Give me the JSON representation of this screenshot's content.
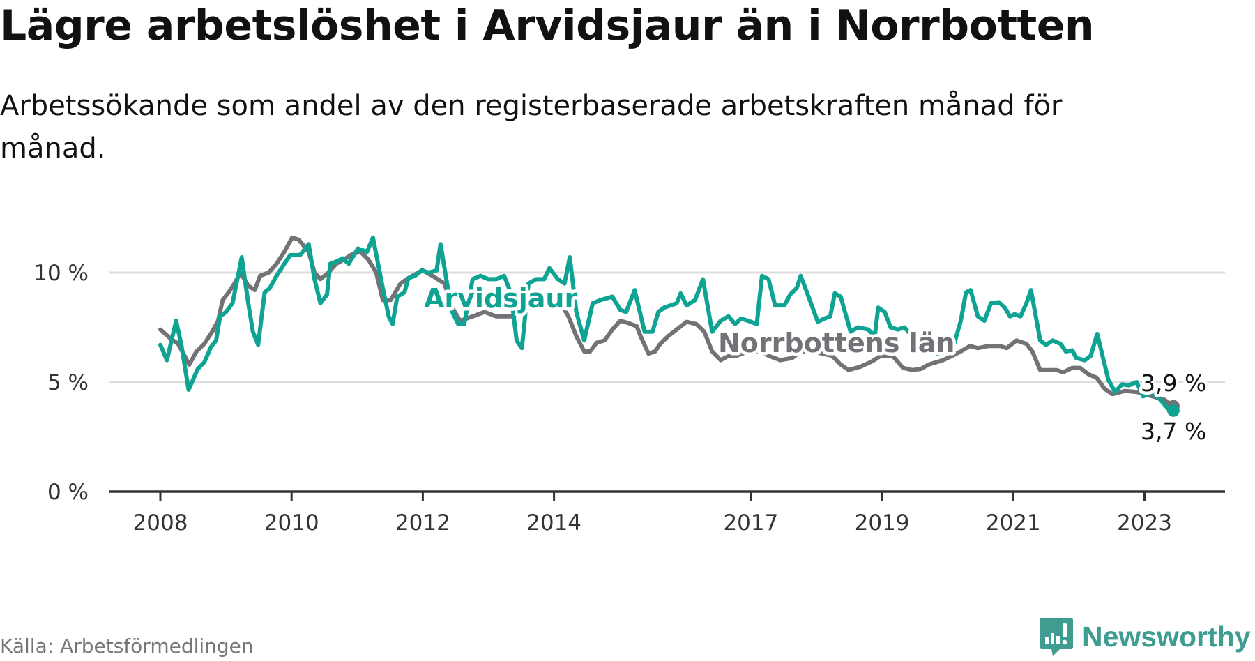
{
  "title": "Lägre arbetslöshet i Arvidsjaur än i Norrbotten",
  "subtitle": "Arbetssökande som andel av den registerbaserade arbetskraften månad för månad.",
  "source": "Källa: Arbetsförmedlingen",
  "logo": "Newsworthy",
  "colors": {
    "arvidsjaur": "#0fa394",
    "norrbotten": "#737277",
    "grid": "#dddddd",
    "axis": "#333333",
    "logo": "#3f9c90"
  },
  "chart_data": {
    "type": "line",
    "title": "Lägre arbetslöshet i Arvidsjaur än i Norrbotten",
    "xlabel": "",
    "ylabel": "",
    "xlim": [
      2008,
      2023.9
    ],
    "ylim": [
      0,
      12
    ],
    "yticks": [
      0,
      5,
      10
    ],
    "ytick_labels": [
      "0 %",
      "5 %",
      "10 %"
    ],
    "xticks": [
      2008,
      2010,
      2012,
      2014,
      2017,
      2019,
      2021,
      2023
    ],
    "xtick_labels": [
      "2008",
      "2010",
      "2012",
      "2014",
      "2017",
      "2019",
      "2021",
      "2023"
    ],
    "grid": "horizontal",
    "legend": "inline labels",
    "series": [
      {
        "name": "Arvidsjaur",
        "end_label": "3,7 %",
        "points": [
          [
            2008.0,
            6.7
          ],
          [
            2008.1,
            6.0
          ],
          [
            2008.24,
            7.8
          ],
          [
            2008.32,
            6.7
          ],
          [
            2008.43,
            4.65
          ],
          [
            2008.57,
            5.6
          ],
          [
            2008.67,
            5.9
          ],
          [
            2008.77,
            6.6
          ],
          [
            2008.85,
            6.9
          ],
          [
            2008.91,
            8.0
          ],
          [
            2009.0,
            8.2
          ],
          [
            2009.1,
            8.6
          ],
          [
            2009.24,
            10.7
          ],
          [
            2009.34,
            8.6
          ],
          [
            2009.41,
            7.3
          ],
          [
            2009.49,
            6.7
          ],
          [
            2009.59,
            9.1
          ],
          [
            2009.67,
            9.3
          ],
          [
            2009.77,
            9.85
          ],
          [
            2009.89,
            10.4
          ],
          [
            2009.98,
            10.8
          ],
          [
            2010.13,
            10.8
          ],
          [
            2010.26,
            11.3
          ],
          [
            2010.35,
            9.7
          ],
          [
            2010.44,
            8.6
          ],
          [
            2010.54,
            9.0
          ],
          [
            2010.59,
            10.4
          ],
          [
            2010.68,
            10.5
          ],
          [
            2010.78,
            10.65
          ],
          [
            2010.87,
            10.4
          ],
          [
            2011.01,
            11.1
          ],
          [
            2011.15,
            10.95
          ],
          [
            2011.24,
            11.6
          ],
          [
            2011.39,
            9.3
          ],
          [
            2011.48,
            8.0
          ],
          [
            2011.54,
            7.65
          ],
          [
            2011.61,
            8.9
          ],
          [
            2011.72,
            9.1
          ],
          [
            2011.78,
            9.75
          ],
          [
            2011.88,
            9.85
          ],
          [
            2011.98,
            10.1
          ],
          [
            2012.09,
            10.0
          ],
          [
            2012.21,
            10.1
          ],
          [
            2012.27,
            11.3
          ],
          [
            2012.37,
            9.5
          ],
          [
            2012.45,
            8.2
          ],
          [
            2012.54,
            7.65
          ],
          [
            2012.63,
            7.65
          ],
          [
            2012.76,
            9.7
          ],
          [
            2012.88,
            9.85
          ],
          [
            2013.0,
            9.7
          ],
          [
            2013.12,
            9.7
          ],
          [
            2013.24,
            9.85
          ],
          [
            2013.34,
            9.1
          ],
          [
            2013.43,
            6.9
          ],
          [
            2013.51,
            6.55
          ],
          [
            2013.61,
            9.5
          ],
          [
            2013.73,
            9.7
          ],
          [
            2013.85,
            9.7
          ],
          [
            2013.93,
            10.2
          ],
          [
            2014.06,
            9.7
          ],
          [
            2014.16,
            9.5
          ],
          [
            2014.24,
            10.7
          ],
          [
            2014.34,
            8.2
          ],
          [
            2014.46,
            6.9
          ],
          [
            2014.59,
            8.6
          ],
          [
            2014.71,
            8.75
          ],
          [
            2014.89,
            8.9
          ],
          [
            2015.01,
            8.3
          ],
          [
            2015.1,
            8.2
          ],
          [
            2015.23,
            9.2
          ],
          [
            2015.38,
            7.3
          ],
          [
            2015.5,
            7.3
          ],
          [
            2015.59,
            8.2
          ],
          [
            2015.68,
            8.4
          ],
          [
            2015.87,
            8.6
          ],
          [
            2015.93,
            9.05
          ],
          [
            2016.02,
            8.5
          ],
          [
            2016.15,
            8.75
          ],
          [
            2016.27,
            9.7
          ],
          [
            2016.41,
            7.3
          ],
          [
            2016.54,
            7.8
          ],
          [
            2016.66,
            8.0
          ],
          [
            2016.76,
            7.65
          ],
          [
            2016.85,
            7.9
          ],
          [
            2016.96,
            7.8
          ],
          [
            2017.09,
            7.65
          ],
          [
            2017.17,
            9.85
          ],
          [
            2017.27,
            9.7
          ],
          [
            2017.37,
            8.5
          ],
          [
            2017.51,
            8.5
          ],
          [
            2017.6,
            9.0
          ],
          [
            2017.7,
            9.3
          ],
          [
            2017.76,
            9.85
          ],
          [
            2017.88,
            8.9
          ],
          [
            2018.02,
            7.75
          ],
          [
            2018.12,
            7.9
          ],
          [
            2018.21,
            8.0
          ],
          [
            2018.28,
            9.05
          ],
          [
            2018.37,
            8.9
          ],
          [
            2018.52,
            7.3
          ],
          [
            2018.63,
            7.5
          ],
          [
            2018.79,
            7.4
          ],
          [
            2018.89,
            7.1
          ],
          [
            2018.94,
            8.4
          ],
          [
            2019.04,
            8.2
          ],
          [
            2019.13,
            7.5
          ],
          [
            2019.24,
            7.4
          ],
          [
            2019.34,
            7.5
          ],
          [
            2019.46,
            7.1
          ],
          [
            2019.67,
            6.8
          ],
          [
            2019.85,
            6.3
          ],
          [
            2020.01,
            6.4
          ],
          [
            2020.1,
            6.75
          ],
          [
            2020.2,
            7.8
          ],
          [
            2020.28,
            9.1
          ],
          [
            2020.35,
            9.2
          ],
          [
            2020.46,
            8.0
          ],
          [
            2020.56,
            7.8
          ],
          [
            2020.66,
            8.6
          ],
          [
            2020.78,
            8.65
          ],
          [
            2020.87,
            8.4
          ],
          [
            2020.95,
            8.0
          ],
          [
            2021.02,
            8.1
          ],
          [
            2021.11,
            8.0
          ],
          [
            2021.2,
            8.6
          ],
          [
            2021.27,
            9.2
          ],
          [
            2021.41,
            6.9
          ],
          [
            2021.5,
            6.7
          ],
          [
            2021.6,
            6.9
          ],
          [
            2021.72,
            6.75
          ],
          [
            2021.8,
            6.4
          ],
          [
            2021.9,
            6.45
          ],
          [
            2021.96,
            6.1
          ],
          [
            2022.09,
            6.0
          ],
          [
            2022.18,
            6.2
          ],
          [
            2022.28,
            7.2
          ],
          [
            2022.45,
            5.1
          ],
          [
            2022.55,
            4.55
          ],
          [
            2022.66,
            4.9
          ],
          [
            2022.76,
            4.85
          ],
          [
            2022.88,
            5.0
          ],
          [
            2022.98,
            4.35
          ],
          [
            2023.12,
            4.55
          ],
          [
            2023.24,
            4.2
          ],
          [
            2023.37,
            3.75
          ],
          [
            2023.44,
            3.7
          ]
        ]
      },
      {
        "name": "Norrbottens län",
        "end_label": "3,9 %",
        "points": [
          [
            2008.0,
            7.4
          ],
          [
            2008.15,
            7.0
          ],
          [
            2008.27,
            6.75
          ],
          [
            2008.37,
            6.2
          ],
          [
            2008.44,
            5.8
          ],
          [
            2008.55,
            6.4
          ],
          [
            2008.67,
            6.75
          ],
          [
            2008.79,
            7.3
          ],
          [
            2008.88,
            7.8
          ],
          [
            2008.95,
            8.75
          ],
          [
            2009.04,
            9.1
          ],
          [
            2009.13,
            9.5
          ],
          [
            2009.22,
            10.0
          ],
          [
            2009.34,
            9.4
          ],
          [
            2009.44,
            9.2
          ],
          [
            2009.52,
            9.85
          ],
          [
            2009.65,
            10.0
          ],
          [
            2009.77,
            10.4
          ],
          [
            2009.89,
            10.95
          ],
          [
            2010.01,
            11.6
          ],
          [
            2010.11,
            11.5
          ],
          [
            2010.26,
            10.95
          ],
          [
            2010.35,
            10.0
          ],
          [
            2010.44,
            9.7
          ],
          [
            2010.56,
            10.0
          ],
          [
            2010.68,
            10.4
          ],
          [
            2010.8,
            10.6
          ],
          [
            2010.93,
            10.85
          ],
          [
            2011.05,
            10.95
          ],
          [
            2011.17,
            10.6
          ],
          [
            2011.29,
            10.0
          ],
          [
            2011.39,
            8.75
          ],
          [
            2011.51,
            8.75
          ],
          [
            2011.66,
            9.5
          ],
          [
            2011.78,
            9.75
          ],
          [
            2011.9,
            9.95
          ],
          [
            2012.0,
            10.1
          ],
          [
            2012.15,
            9.85
          ],
          [
            2012.33,
            9.5
          ],
          [
            2012.45,
            8.4
          ],
          [
            2012.57,
            7.8
          ],
          [
            2012.76,
            8.0
          ],
          [
            2012.94,
            8.2
          ],
          [
            2013.12,
            8.0
          ],
          [
            2013.37,
            8.0
          ],
          [
            2013.61,
            8.4
          ],
          [
            2013.85,
            8.6
          ],
          [
            2014.1,
            8.6
          ],
          [
            2014.22,
            8.0
          ],
          [
            2014.34,
            7.1
          ],
          [
            2014.46,
            6.4
          ],
          [
            2014.55,
            6.4
          ],
          [
            2014.65,
            6.8
          ],
          [
            2014.77,
            6.9
          ],
          [
            2014.89,
            7.4
          ],
          [
            2015.01,
            7.8
          ],
          [
            2015.13,
            7.7
          ],
          [
            2015.26,
            7.55
          ],
          [
            2015.32,
            7.1
          ],
          [
            2015.44,
            6.3
          ],
          [
            2015.54,
            6.4
          ],
          [
            2015.62,
            6.75
          ],
          [
            2015.74,
            7.1
          ],
          [
            2015.87,
            7.4
          ],
          [
            2016.02,
            7.75
          ],
          [
            2016.17,
            7.65
          ],
          [
            2016.29,
            7.3
          ],
          [
            2016.41,
            6.4
          ],
          [
            2016.54,
            6.0
          ],
          [
            2016.66,
            6.2
          ],
          [
            2016.78,
            6.2
          ],
          [
            2016.96,
            6.4
          ],
          [
            2017.15,
            6.4
          ],
          [
            2017.27,
            6.2
          ],
          [
            2017.45,
            6.0
          ],
          [
            2017.63,
            6.1
          ],
          [
            2017.76,
            6.4
          ],
          [
            2017.94,
            6.4
          ],
          [
            2018.24,
            6.2
          ],
          [
            2018.37,
            5.8
          ],
          [
            2018.49,
            5.55
          ],
          [
            2018.67,
            5.7
          ],
          [
            2018.85,
            5.95
          ],
          [
            2018.98,
            6.2
          ],
          [
            2019.16,
            6.2
          ],
          [
            2019.32,
            5.65
          ],
          [
            2019.46,
            5.55
          ],
          [
            2019.59,
            5.6
          ],
          [
            2019.71,
            5.8
          ],
          [
            2019.93,
            6.0
          ],
          [
            2020.07,
            6.2
          ],
          [
            2020.2,
            6.4
          ],
          [
            2020.34,
            6.65
          ],
          [
            2020.46,
            6.55
          ],
          [
            2020.62,
            6.65
          ],
          [
            2020.8,
            6.65
          ],
          [
            2020.9,
            6.55
          ],
          [
            2021.05,
            6.9
          ],
          [
            2021.2,
            6.75
          ],
          [
            2021.29,
            6.4
          ],
          [
            2021.41,
            5.55
          ],
          [
            2021.66,
            5.55
          ],
          [
            2021.76,
            5.45
          ],
          [
            2021.9,
            5.65
          ],
          [
            2022.02,
            5.65
          ],
          [
            2022.15,
            5.35
          ],
          [
            2022.27,
            5.2
          ],
          [
            2022.39,
            4.7
          ],
          [
            2022.51,
            4.45
          ],
          [
            2022.7,
            4.6
          ],
          [
            2022.88,
            4.55
          ],
          [
            2023.12,
            4.35
          ],
          [
            2023.3,
            4.2
          ],
          [
            2023.44,
            3.9
          ]
        ]
      }
    ]
  }
}
